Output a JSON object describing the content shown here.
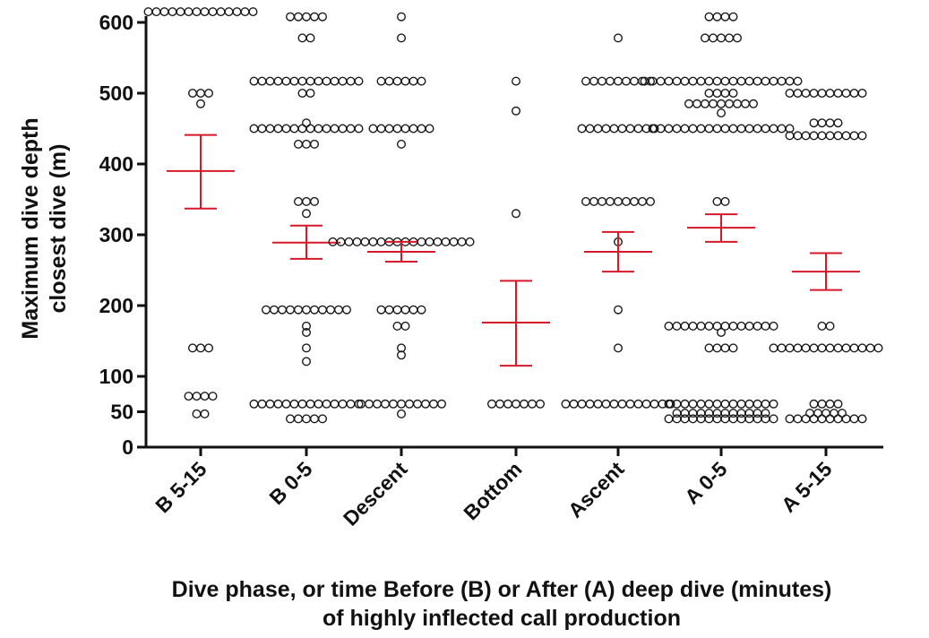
{
  "chart_data": {
    "type": "scatter",
    "subtype": "column dot plot with mean and error bars",
    "title": "",
    "ylabel": [
      "Maximum dive depth",
      "closest dive (m)"
    ],
    "xlabel": [
      "Dive phase, or time Before (B) or After (A) deep dive (minutes)",
      "of highly inflected call production"
    ],
    "ylim": [
      0,
      620
    ],
    "yticks": [
      0,
      50,
      100,
      200,
      300,
      400,
      500,
      600
    ],
    "ytick_labels": [
      "0",
      "50",
      "100",
      "200",
      "300",
      "400",
      "500",
      "600"
    ],
    "categories": [
      "B 5-15",
      "B 0-5",
      "Descent",
      "Bottom",
      "Ascent",
      "A 0-5",
      "A 5-15"
    ],
    "grid": false,
    "legend": "none",
    "marker_color": "#1a1a1a",
    "summary_color": "#d4192b",
    "groups": [
      {
        "name": "B 5-15",
        "points": [
          {
            "y": 615,
            "n": 14
          },
          {
            "y": 500,
            "n": 3
          },
          {
            "y": 485,
            "n": 1
          },
          {
            "y": 140,
            "n": 3
          },
          {
            "y": 72,
            "n": 4
          },
          {
            "y": 47,
            "n": 2
          }
        ],
        "mean": 390,
        "err_high": 441,
        "err_low": 337
      },
      {
        "name": "B 0-5",
        "points": [
          {
            "y": 608,
            "n": 5
          },
          {
            "y": 578,
            "n": 2
          },
          {
            "y": 517,
            "n": 14
          },
          {
            "y": 500,
            "n": 2
          },
          {
            "y": 458,
            "n": 1
          },
          {
            "y": 450,
            "n": 14
          },
          {
            "y": 428,
            "n": 3
          },
          {
            "y": 347,
            "n": 3
          },
          {
            "y": 330,
            "n": 1
          },
          {
            "y": 194,
            "n": 11
          },
          {
            "y": 171,
            "n": 1
          },
          {
            "y": 162,
            "n": 1
          },
          {
            "y": 140,
            "n": 1
          },
          {
            "y": 121,
            "n": 1
          },
          {
            "y": 61,
            "n": 14
          },
          {
            "y": 40,
            "n": 5
          }
        ],
        "mean": 289,
        "err_high": 313,
        "err_low": 266
      },
      {
        "name": "Descent",
        "points": [
          {
            "y": 608,
            "n": 1
          },
          {
            "y": 578,
            "n": 1
          },
          {
            "y": 517,
            "n": 6
          },
          {
            "y": 450,
            "n": 8
          },
          {
            "y": 428,
            "n": 1
          },
          {
            "y": 290,
            "n": 18
          },
          {
            "y": 194,
            "n": 6
          },
          {
            "y": 171,
            "n": 2
          },
          {
            "y": 140,
            "n": 1
          },
          {
            "y": 130,
            "n": 1
          },
          {
            "y": 61,
            "n": 11
          },
          {
            "y": 47,
            "n": 1
          }
        ],
        "mean": 276,
        "err_high": 290,
        "err_low": 262
      },
      {
        "name": "Bottom",
        "points": [
          {
            "y": 517,
            "n": 1
          },
          {
            "y": 475,
            "n": 1
          },
          {
            "y": 330,
            "n": 1
          },
          {
            "y": 61,
            "n": 7
          }
        ],
        "mean": 176,
        "err_high": 235,
        "err_low": 115
      },
      {
        "name": "Ascent",
        "points": [
          {
            "y": 578,
            "n": 1
          },
          {
            "y": 517,
            "n": 9
          },
          {
            "y": 450,
            "n": 10
          },
          {
            "y": 347,
            "n": 9
          },
          {
            "y": 290,
            "n": 1
          },
          {
            "y": 194,
            "n": 1
          },
          {
            "y": 140,
            "n": 1
          },
          {
            "y": 61,
            "n": 14
          }
        ],
        "mean": 276,
        "err_high": 304,
        "err_low": 248
      },
      {
        "name": "A 0-5",
        "points": [
          {
            "y": 608,
            "n": 4
          },
          {
            "y": 578,
            "n": 5
          },
          {
            "y": 517,
            "n": 20
          },
          {
            "y": 500,
            "n": 4
          },
          {
            "y": 485,
            "n": 9
          },
          {
            "y": 472,
            "n": 1
          },
          {
            "y": 450,
            "n": 18
          },
          {
            "y": 347,
            "n": 2
          },
          {
            "y": 171,
            "n": 14
          },
          {
            "y": 162,
            "n": 1
          },
          {
            "y": 140,
            "n": 4
          },
          {
            "y": 61,
            "n": 14
          },
          {
            "y": 48,
            "n": 12
          },
          {
            "y": 40,
            "n": 14
          }
        ],
        "mean": 310,
        "err_high": 329,
        "err_low": 290
      },
      {
        "name": "A 5-15",
        "points": [
          {
            "y": 500,
            "n": 10
          },
          {
            "y": 458,
            "n": 4
          },
          {
            "y": 440,
            "n": 10
          },
          {
            "y": 171,
            "n": 2
          },
          {
            "y": 140,
            "n": 14
          },
          {
            "y": 61,
            "n": 4
          },
          {
            "y": 48,
            "n": 5
          },
          {
            "y": 40,
            "n": 10
          }
        ],
        "mean": 248,
        "err_high": 274,
        "err_low": 222
      }
    ]
  }
}
